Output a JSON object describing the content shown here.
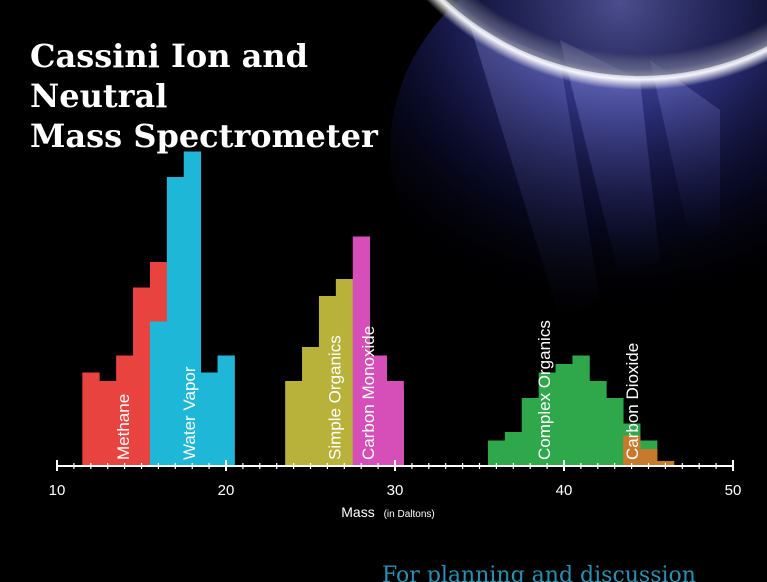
{
  "title_line1": "Cassini Ion and Neutral",
  "title_line2": "Mass Spectrometer",
  "footer_note": "For planning and discussion",
  "chart_data": {
    "type": "bar",
    "title": "",
    "xlabel_main": "Mass",
    "xlabel_note": "(in Daltons)",
    "xlim": [
      10,
      50
    ],
    "x_ticks": [
      10,
      20,
      30,
      40,
      50
    ],
    "y_axis_shown": false,
    "grid": false,
    "legend": "none",
    "bin_width": 1,
    "series": [
      {
        "name": "Methane",
        "color": "#e8433f",
        "x": [
          12,
          13,
          14,
          15,
          16
        ],
        "values": [
          5.5,
          5.0,
          6.5,
          10.5,
          12.0
        ]
      },
      {
        "name": "Water Vapor",
        "color": "#1fb7d8",
        "x": [
          16,
          17,
          18,
          19,
          20
        ],
        "values": [
          8.5,
          17.0,
          18.5,
          5.5,
          6.5
        ]
      },
      {
        "name": "Simple Organics",
        "color": "#b8b23a",
        "x": [
          24,
          25,
          26,
          27,
          28,
          29,
          30
        ],
        "values": [
          5.0,
          7.0,
          10.0,
          11.0,
          9.0,
          6.0,
          4.5
        ]
      },
      {
        "name": "Carbon Monoxide",
        "color": "#d64fb8",
        "x": [
          28,
          29,
          30
        ],
        "values": [
          13.5,
          6.5,
          5.0
        ]
      },
      {
        "name": "Complex Organics",
        "color": "#2ea84a",
        "x": [
          36,
          37,
          38,
          39,
          40,
          41,
          42,
          43,
          44,
          45
        ],
        "values": [
          1.5,
          2.0,
          4.0,
          5.5,
          6.0,
          6.5,
          5.0,
          4.0,
          2.5,
          1.5
        ]
      },
      {
        "name": "Carbon Dioxide",
        "color": "#c87a2c",
        "x": [
          44,
          45,
          46
        ],
        "values": [
          1.8,
          1.0,
          0.3
        ]
      }
    ]
  }
}
